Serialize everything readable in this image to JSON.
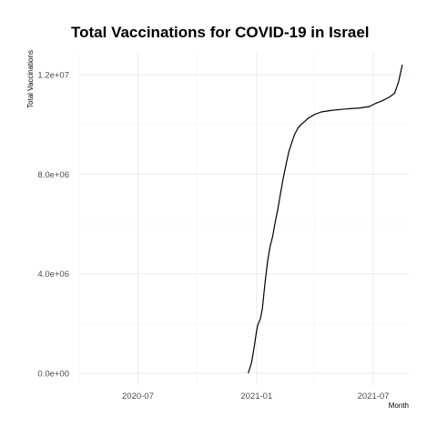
{
  "chart_data": {
    "type": "line",
    "title": "Total Vaccinations for COVID-19 in Israel",
    "xlabel": "Month",
    "ylabel": "Total Vaccinations",
    "x_ticks": [
      "2020-07",
      "2021-01",
      "2021-07"
    ],
    "y_ticks": [
      "0.0e+00",
      "4.0e+06",
      "8.0e+06",
      "1.2e+07"
    ],
    "ylim": [
      0,
      12500000
    ],
    "xlim": [
      "2020-04-01",
      "2021-08-25"
    ],
    "grid": true,
    "legend": "none",
    "series": [
      {
        "color": "#000000",
        "x": [
          "2020-12-19",
          "2020-12-24",
          "2020-12-28",
          "2021-01-01",
          "2021-01-03",
          "2021-01-07",
          "2021-01-10",
          "2021-01-14",
          "2021-01-18",
          "2021-01-22",
          "2021-01-26",
          "2021-01-30",
          "2021-02-03",
          "2021-02-07",
          "2021-02-11",
          "2021-02-15",
          "2021-02-20",
          "2021-02-25",
          "2021-03-01",
          "2021-03-06",
          "2021-03-11",
          "2021-03-16",
          "2021-03-22",
          "2021-04-01",
          "2021-04-11",
          "2021-04-26",
          "2021-05-10",
          "2021-05-25",
          "2021-06-10",
          "2021-06-25",
          "2021-07-05",
          "2021-07-15",
          "2021-07-26",
          "2021-08-03",
          "2021-08-09",
          "2021-08-12",
          "2021-08-15"
        ],
        "values": [
          0,
          400000,
          1000000,
          1700000,
          1950000,
          2200000,
          2600000,
          3600000,
          4500000,
          5100000,
          5500000,
          6100000,
          6600000,
          7200000,
          7800000,
          8300000,
          8900000,
          9300000,
          9600000,
          9850000,
          10000000,
          10100000,
          10250000,
          10400000,
          10500000,
          10560000,
          10600000,
          10630000,
          10660000,
          10720000,
          10850000,
          10950000,
          11100000,
          11250000,
          11700000,
          12050000,
          12400000
        ]
      }
    ]
  }
}
